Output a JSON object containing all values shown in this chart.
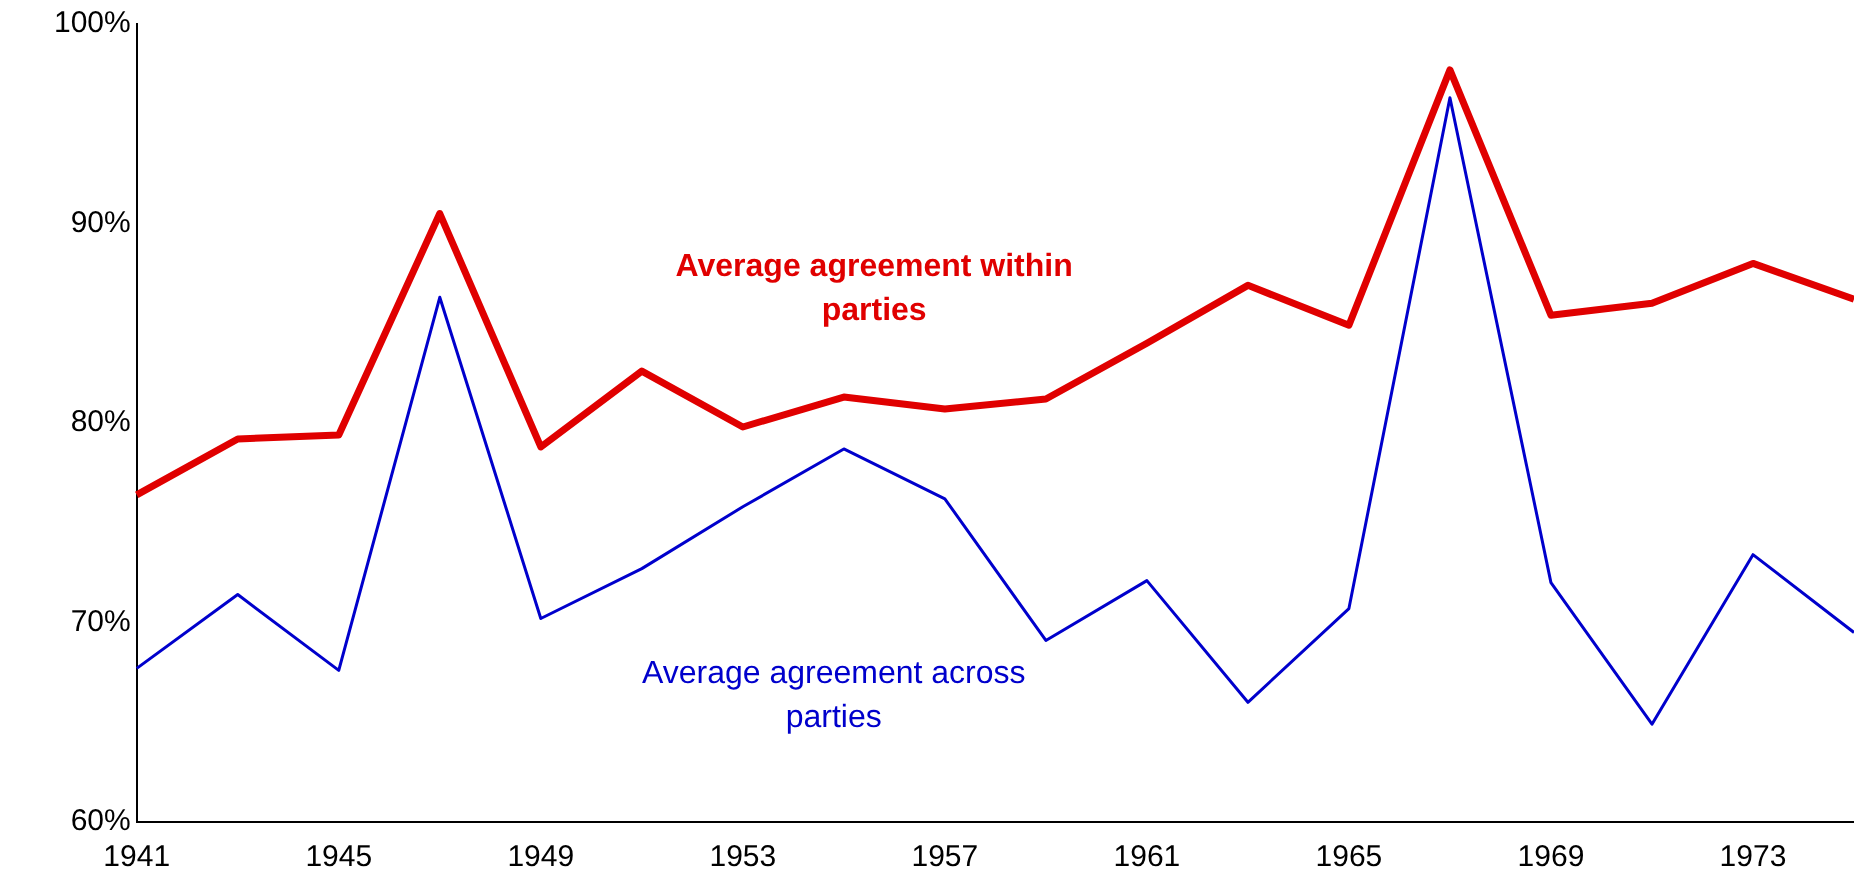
{
  "chart_data": {
    "type": "line",
    "x": [
      1941,
      1943,
      1945,
      1947,
      1949,
      1951,
      1953,
      1955,
      1957,
      1959,
      1961,
      1963,
      1965,
      1967,
      1969,
      1971,
      1973,
      1975
    ],
    "series": [
      {
        "name": "Average agreement within parties",
        "color": "#e00000",
        "values": [
          76.4,
          79.2,
          79.4,
          90.5,
          78.8,
          82.6,
          79.8,
          81.3,
          80.7,
          81.2,
          84.0,
          86.9,
          84.9,
          97.7,
          85.4,
          86.0,
          88.0,
          86.2
        ]
      },
      {
        "name": "Average agreement across parties",
        "color": "#0000cc",
        "values": [
          67.7,
          71.4,
          67.6,
          86.3,
          70.2,
          72.7,
          75.8,
          78.7,
          76.2,
          69.1,
          72.1,
          66.0,
          70.7,
          96.3,
          72.0,
          64.9,
          73.4,
          69.5
        ]
      }
    ],
    "xlim": [
      1941,
      1975
    ],
    "xticks": [
      1941,
      1945,
      1949,
      1953,
      1957,
      1961,
      1965,
      1969,
      1973
    ],
    "ylim": [
      60,
      100
    ],
    "yticks": [
      {
        "value": 60,
        "label": "60%"
      },
      {
        "value": 70,
        "label": "70%"
      },
      {
        "value": 80,
        "label": "80%"
      },
      {
        "value": 90,
        "label": "90%"
      },
      {
        "value": 100,
        "label": "100%"
      }
    ],
    "grid": false,
    "legend": false,
    "marker": "none",
    "line_style": "solid"
  }
}
